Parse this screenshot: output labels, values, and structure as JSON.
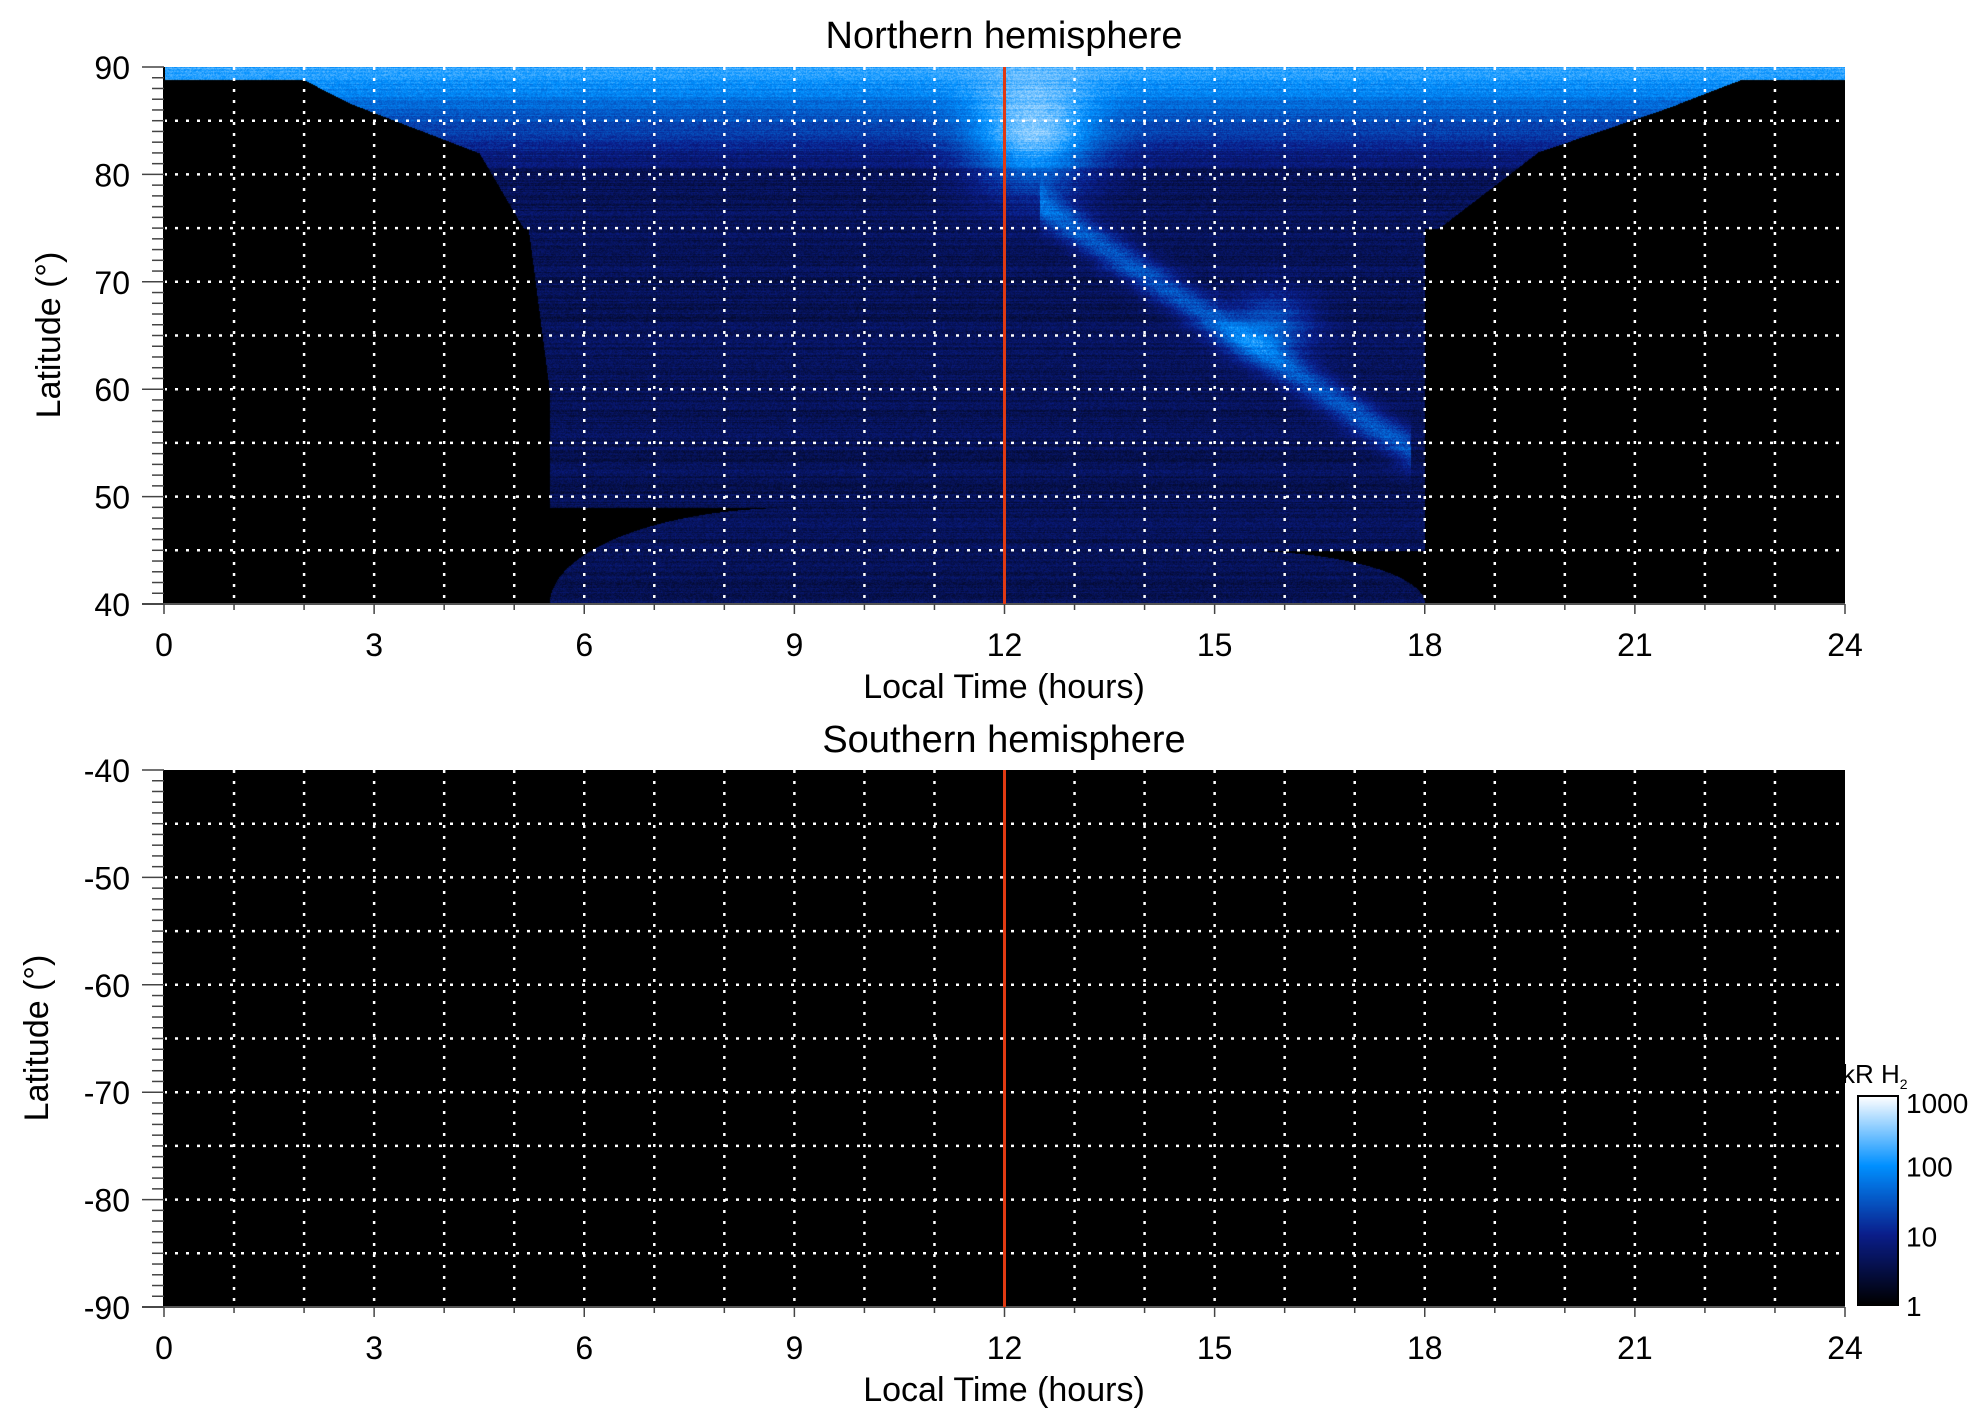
{
  "chart_data": [
    {
      "type": "heatmap",
      "title": "Northern hemisphere",
      "xlabel": "Local Time (hours)",
      "ylabel": "Latitude (°)",
      "xlim": [
        0,
        24
      ],
      "ylim": [
        40,
        90
      ],
      "xticks": [
        "0",
        "3",
        "6",
        "9",
        "12",
        "15",
        "18",
        "21",
        "24"
      ],
      "yticks": [
        "40",
        "50",
        "60",
        "70",
        "80",
        "90"
      ],
      "grid": "dotted, every 1 hour and 5 degrees",
      "marker_line_x": 12,
      "coverage_note": "emission observed poleward of ~49-85° between ~2 and ~22 h LT; bright oval arc from ~13 h/75° to ~17.5 h/55°, bright noon patch near 12-13 h/78-88°"
    },
    {
      "type": "heatmap",
      "title": "Southern hemisphere",
      "xlabel": "Local Time (hours)",
      "ylabel": "Latitude (°)",
      "xlim": [
        0,
        24
      ],
      "ylim": [
        -90,
        -40
      ],
      "xticks": [
        "0",
        "3",
        "6",
        "9",
        "12",
        "15",
        "18",
        "21",
        "24"
      ],
      "yticks": [
        "-40",
        "-50",
        "-60",
        "-70",
        "-80",
        "-90"
      ],
      "grid": "dotted, every 1 hour and 5 degrees",
      "marker_line_x": 12,
      "coverage_note": "no emission (all black)"
    }
  ],
  "colorbar": {
    "label": "kR H",
    "label_sub": "2",
    "scale": "log",
    "range": [
      1,
      1000
    ],
    "ticks": [
      "1000",
      "100",
      "10",
      "1"
    ],
    "colors": [
      "#000000",
      "#0a1d8a",
      "#0090ff",
      "#ffffff"
    ]
  },
  "colors": {
    "marker_line": "#e03a12",
    "grid": "#ffffff",
    "background": "#000000"
  }
}
